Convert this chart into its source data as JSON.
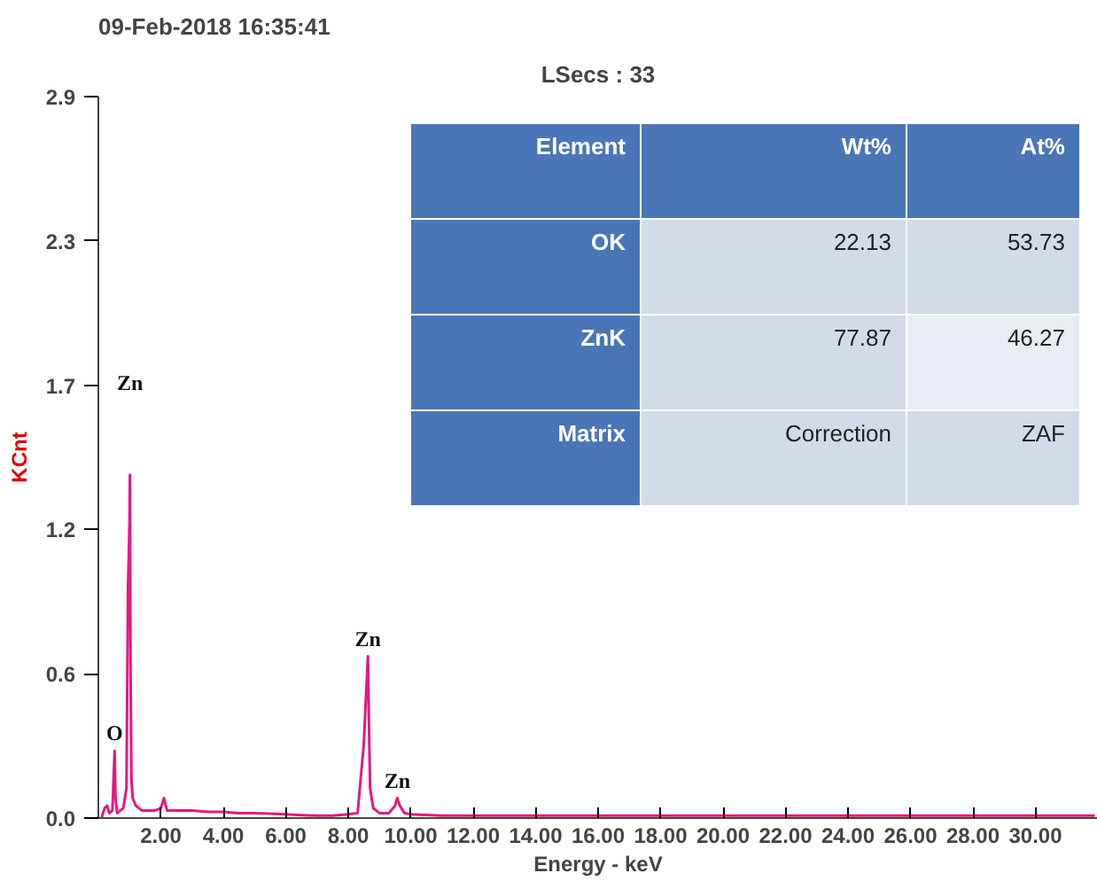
{
  "chart_data": {
    "type": "line",
    "title": "09-Feb-2018 16:35:41",
    "subtitle": "LSecs : 33",
    "xlabel": "Energy - keV",
    "ylabel": "KCnt",
    "x": [
      0.1,
      0.2,
      0.28,
      0.35,
      0.45,
      0.5,
      0.52,
      0.55,
      0.6,
      0.7,
      0.8,
      0.9,
      0.95,
      1.0,
      1.01,
      1.03,
      1.06,
      1.1,
      1.2,
      1.4,
      1.6,
      1.8,
      2.0,
      2.1,
      2.2,
      2.4,
      2.6,
      3.0,
      3.5,
      4.0,
      4.5,
      5.0,
      5.5,
      6.0,
      6.5,
      7.0,
      7.5,
      8.0,
      8.3,
      8.5,
      8.58,
      8.63,
      8.66,
      8.7,
      8.8,
      9.0,
      9.3,
      9.5,
      9.57,
      9.65,
      9.8,
      10.0,
      11,
      12,
      14,
      16,
      18,
      20,
      22,
      24,
      26,
      28,
      30,
      31.9
    ],
    "series": [
      {
        "color": "#e6187a",
        "values": [
          0.0,
          0.04,
          0.05,
          0.02,
          0.03,
          0.2,
          0.27,
          0.08,
          0.02,
          0.03,
          0.04,
          0.12,
          0.93,
          1.2,
          1.38,
          0.6,
          0.15,
          0.08,
          0.05,
          0.03,
          0.03,
          0.03,
          0.04,
          0.08,
          0.03,
          0.03,
          0.03,
          0.03,
          0.025,
          0.025,
          0.02,
          0.02,
          0.018,
          0.015,
          0.012,
          0.01,
          0.01,
          0.015,
          0.02,
          0.3,
          0.52,
          0.65,
          0.4,
          0.12,
          0.04,
          0.02,
          0.02,
          0.05,
          0.08,
          0.05,
          0.02,
          0.015,
          0.01,
          0.01,
          0.01,
          0.01,
          0.01,
          0.01,
          0.01,
          0.01,
          0.01,
          0.01,
          0.01,
          0.01
        ]
      }
    ],
    "xlim": [
      0,
      32
    ],
    "xticks": [
      {
        "value": 2,
        "label": "2.00"
      },
      {
        "value": 4,
        "label": "4.00"
      },
      {
        "value": 6,
        "label": "6.00"
      },
      {
        "value": 8,
        "label": "8.00"
      },
      {
        "value": 10,
        "label": "10.00"
      },
      {
        "value": 12,
        "label": "12.00"
      },
      {
        "value": 14,
        "label": "14.00"
      },
      {
        "value": 16,
        "label": "16.00"
      },
      {
        "value": 18,
        "label": "18.00"
      },
      {
        "value": 20,
        "label": "20.00"
      },
      {
        "value": 22,
        "label": "22.00"
      },
      {
        "value": 24,
        "label": "24.00"
      },
      {
        "value": 26,
        "label": "26.00"
      },
      {
        "value": 28,
        "label": "28.00"
      },
      {
        "value": 30,
        "label": "30.00"
      }
    ],
    "ylim": [
      0,
      2.9
    ],
    "yticks": [
      {
        "value": 0,
        "label": "0.0"
      },
      {
        "value": 0.58,
        "label": "0.6"
      },
      {
        "value": 1.16,
        "label": "1.2"
      },
      {
        "value": 1.74,
        "label": "1.7"
      },
      {
        "value": 2.32,
        "label": "2.3"
      },
      2.9
    ],
    "grid": false,
    "marker": "none",
    "line_style": "solid",
    "annotations": [
      "Zn",
      {
        "text": "O",
        "x": 0.52,
        "y": 0.27
      },
      {
        "text": "Zn",
        "x": 8.63,
        "y": 0.65
      },
      {
        "text": "Zn",
        "x": 9.57,
        "y": 0.08
      },
      "Element",
      "Wt%",
      "At%",
      "OK",
      "22.13",
      "53.73",
      "ZnK",
      "77.87",
      "46.27",
      "Matrix",
      "Correction",
      "ZAF"
    ]
  }
}
